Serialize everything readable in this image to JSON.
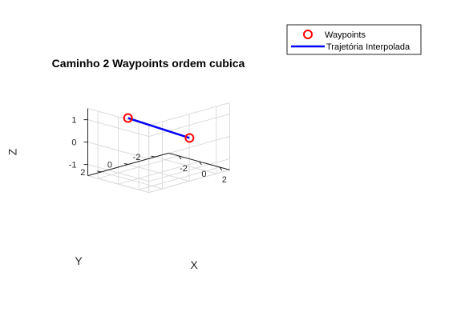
{
  "chart_data": {
    "type": "line",
    "title": "Caminho 2 Waypoints ordem cubica",
    "xlabel": "X",
    "ylabel": "Y",
    "zlabel": "Z",
    "xlim": [
      -3,
      3
    ],
    "ylim": [
      -3,
      3
    ],
    "zlim": [
      -1.5,
      1.5
    ],
    "xticks": [
      -2,
      0,
      2
    ],
    "yticks": [
      -2,
      0,
      2
    ],
    "zticks": [
      -1,
      0,
      1
    ],
    "grid": true,
    "legend_position": "top-right",
    "series": [
      {
        "name": "Waypoints",
        "kind": "markers",
        "marker": "circle",
        "color": "#ff0000",
        "points": [
          {
            "x": -1.3,
            "y": 1.3,
            "z": 1.0
          },
          {
            "x": 1.3,
            "y": -1.3,
            "z": 0.0
          }
        ]
      },
      {
        "name": "Trajetória Interpolada",
        "kind": "line",
        "color": "#0000ff",
        "points": [
          {
            "x": -1.3,
            "y": 1.3,
            "z": 1.0
          },
          {
            "x": 1.3,
            "y": -1.3,
            "z": 0.0
          }
        ]
      }
    ]
  }
}
